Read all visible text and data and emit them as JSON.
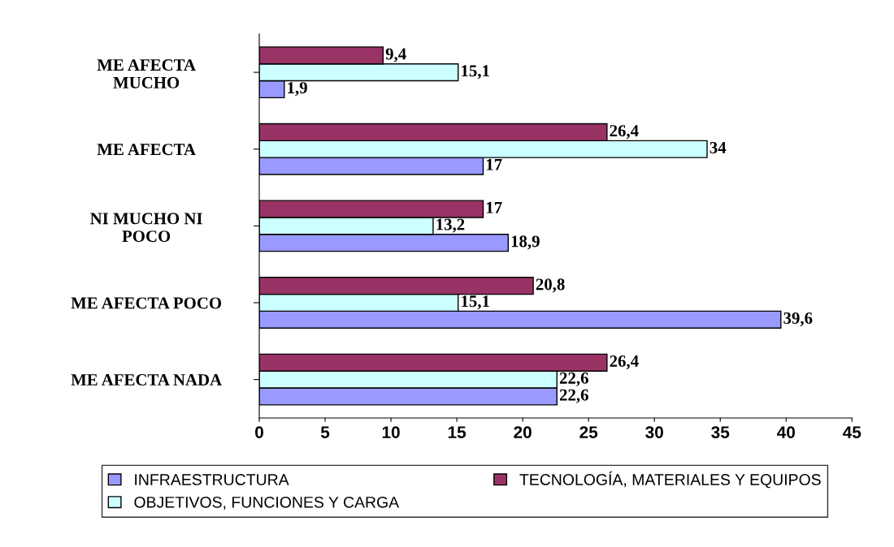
{
  "chart_data": {
    "type": "bar",
    "orientation": "horizontal",
    "categories": [
      "ME AFECTA\nMUCHO",
      "ME AFECTA",
      "NI MUCHO NI\nPOCO",
      "ME AFECTA POCO",
      "ME AFECTA NADA"
    ],
    "series": [
      {
        "name": "INFRAESTRUCTURA",
        "color": "#9999ff",
        "values": [
          1.9,
          17,
          18.9,
          39.6,
          22.6
        ],
        "value_labels": [
          "1,9",
          "17",
          "18,9",
          "39,6",
          "22,6"
        ]
      },
      {
        "name": "OBJETIVOS, FUNCIONES Y CARGA",
        "color": "#ccffff",
        "values": [
          15.1,
          34,
          13.2,
          15.1,
          22.6
        ],
        "value_labels": [
          "15,1",
          "34",
          "13,2",
          "15,1",
          "22,6"
        ]
      },
      {
        "name": "TECNOLOGÍA, MATERIALES Y EQUIPOS",
        "color": "#993366",
        "values": [
          9.4,
          26.4,
          17,
          20.8,
          26.4
        ],
        "value_labels": [
          "9,4",
          "26,4",
          "17",
          "20,8",
          "26,4"
        ]
      }
    ],
    "xlim": [
      0,
      45
    ],
    "xticks": [
      0,
      5,
      10,
      15,
      20,
      25,
      30,
      35,
      40,
      45
    ],
    "grid": false,
    "legend": "bottom"
  }
}
